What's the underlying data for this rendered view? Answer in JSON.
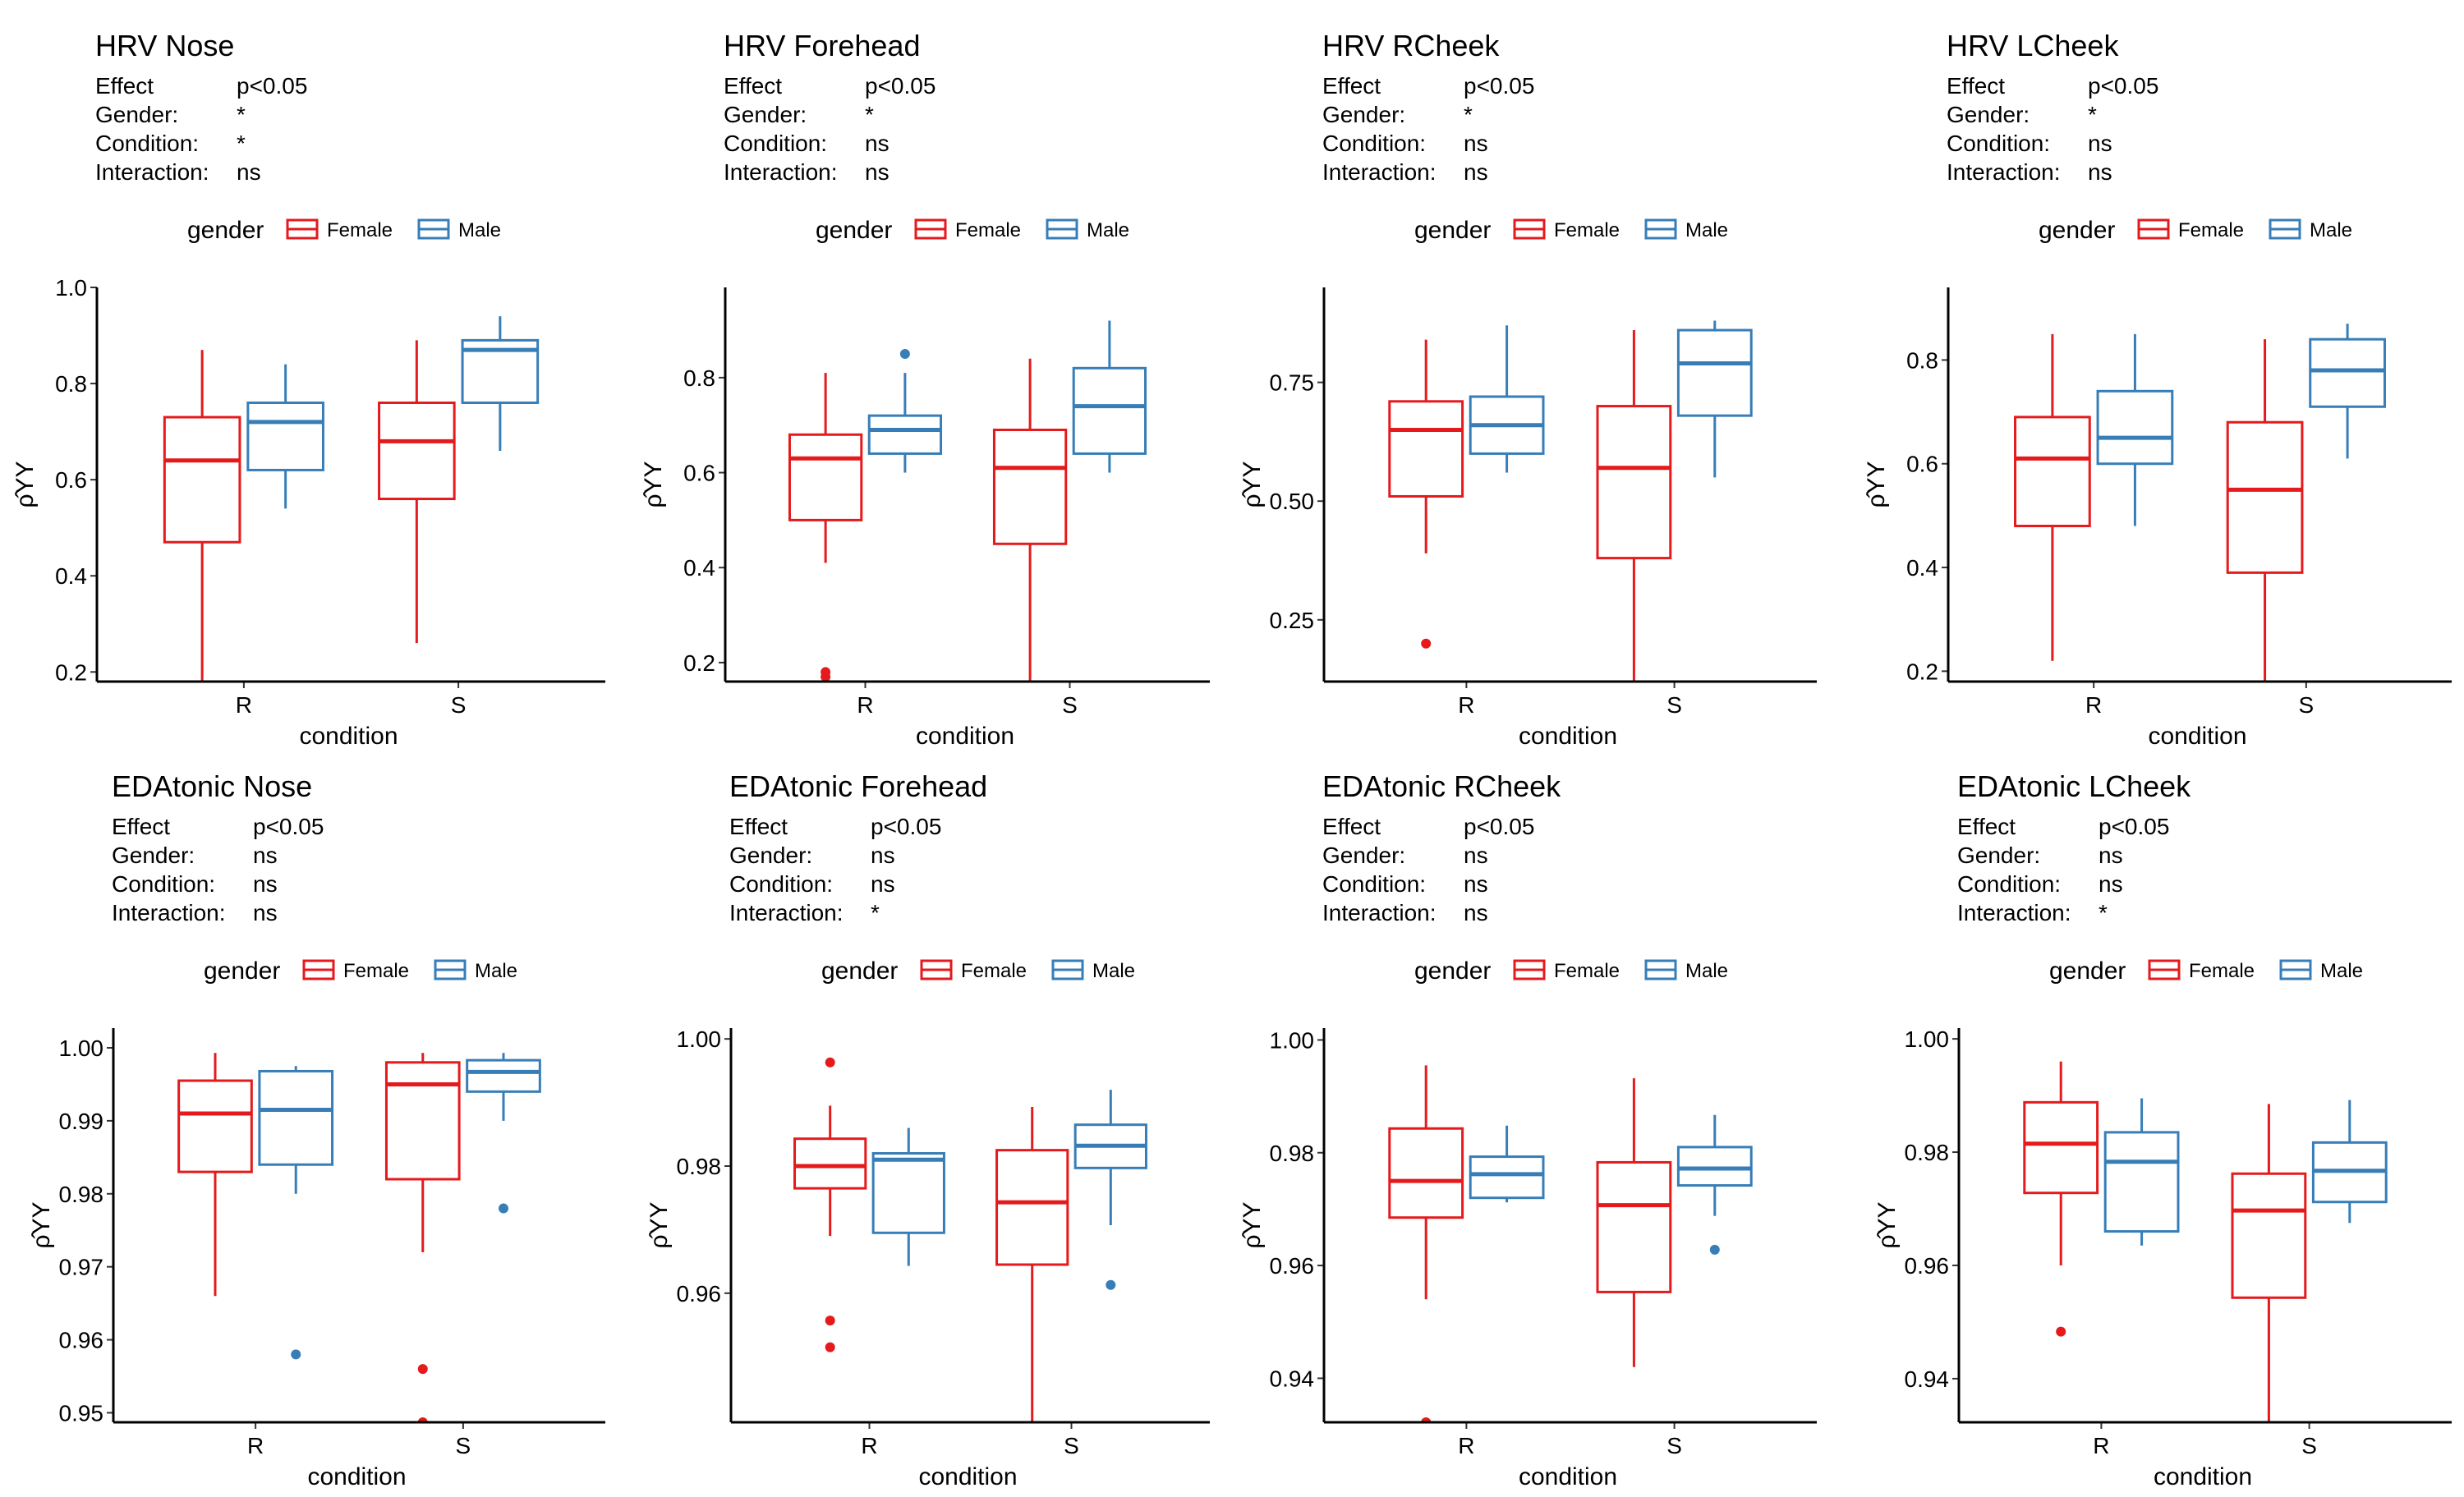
{
  "colors": {
    "female": "#e41a1c",
    "male": "#377eb8"
  },
  "chart_data": [
    {
      "type": "boxplot",
      "title": "HRV Nose",
      "stats": {
        "effect_label": "Effect",
        "effect_value": "p<0.05",
        "gender_label": "Gender:",
        "gender_value": "*",
        "condition_label": "Condition:",
        "condition_value": "*",
        "interaction_label": "Interaction:",
        "interaction_value": "ns"
      },
      "legend": {
        "title": "gender",
        "labels": [
          "Female",
          "Male"
        ],
        "placement": "top"
      },
      "xlabel": "condition",
      "ylabel": "ρ̂YY",
      "categories": [
        "R",
        "S"
      ],
      "ylim": [
        0.18,
        1.0
      ],
      "yticks": [
        0.2,
        0.4,
        0.6,
        0.8,
        1.0
      ],
      "tick_labels": [
        "0.2",
        "0.4",
        "0.6",
        "0.8",
        "1.0"
      ],
      "series": [
        {
          "name": "Female",
          "boxes": [
            {
              "min": 0.18,
              "q1": 0.47,
              "median": 0.64,
              "q3": 0.73,
              "max": 0.87,
              "outliers": []
            },
            {
              "min": 0.26,
              "q1": 0.56,
              "median": 0.68,
              "q3": 0.76,
              "max": 0.89,
              "outliers": []
            }
          ]
        },
        {
          "name": "Male",
          "boxes": [
            {
              "min": 0.54,
              "q1": 0.62,
              "median": 0.72,
              "q3": 0.76,
              "max": 0.84,
              "outliers": []
            },
            {
              "min": 0.66,
              "q1": 0.76,
              "median": 0.87,
              "q3": 0.89,
              "max": 0.94,
              "outliers": []
            }
          ]
        }
      ]
    },
    {
      "type": "boxplot",
      "title": "HRV Forehead",
      "stats": {
        "effect_label": "Effect",
        "effect_value": "p<0.05",
        "gender_label": "Gender:",
        "gender_value": "*",
        "condition_label": "Condition:",
        "condition_value": "ns",
        "interaction_label": "Interaction:",
        "interaction_value": "ns"
      },
      "legend": {
        "title": "gender",
        "labels": [
          "Female",
          "Male"
        ],
        "placement": "top"
      },
      "xlabel": "condition",
      "ylabel": "ρ̂YY",
      "categories": [
        "R",
        "S"
      ],
      "ylim": [
        0.16,
        0.99
      ],
      "yticks": [
        0.2,
        0.4,
        0.6,
        0.8
      ],
      "tick_labels": [
        "0.2",
        "0.4",
        "0.6",
        "0.8"
      ],
      "series": [
        {
          "name": "Female",
          "boxes": [
            {
              "min": 0.41,
              "q1": 0.5,
              "median": 0.63,
              "q3": 0.68,
              "max": 0.81,
              "outliers": [
                0.18,
                0.17
              ]
            },
            {
              "min": 0.16,
              "q1": 0.45,
              "median": 0.61,
              "q3": 0.69,
              "max": 0.84,
              "outliers": []
            }
          ]
        },
        {
          "name": "Male",
          "boxes": [
            {
              "min": 0.6,
              "q1": 0.64,
              "median": 0.69,
              "q3": 0.72,
              "max": 0.81,
              "outliers": [
                0.85
              ]
            },
            {
              "min": 0.6,
              "q1": 0.64,
              "median": 0.74,
              "q3": 0.82,
              "max": 0.92,
              "outliers": []
            }
          ]
        }
      ]
    },
    {
      "type": "boxplot",
      "title": "HRV RCheek",
      "stats": {
        "effect_label": "Effect",
        "effect_value": "p<0.05",
        "gender_label": "Gender:",
        "gender_value": "*",
        "condition_label": "Condition:",
        "condition_value": "ns",
        "interaction_label": "Interaction:",
        "interaction_value": "ns"
      },
      "legend": {
        "title": "gender",
        "labels": [
          "Female",
          "Male"
        ],
        "placement": "top"
      },
      "xlabel": "condition",
      "ylabel": "ρ̂YY",
      "categories": [
        "R",
        "S"
      ],
      "ylim": [
        0.12,
        0.95
      ],
      "yticks": [
        0.25,
        0.5,
        0.75
      ],
      "tick_labels": [
        "0.25",
        "0.50",
        "0.75"
      ],
      "series": [
        {
          "name": "Female",
          "boxes": [
            {
              "min": 0.39,
              "q1": 0.51,
              "median": 0.65,
              "q3": 0.71,
              "max": 0.84,
              "outliers": [
                0.2
              ]
            },
            {
              "min": 0.12,
              "q1": 0.38,
              "median": 0.57,
              "q3": 0.7,
              "max": 0.86,
              "outliers": []
            }
          ]
        },
        {
          "name": "Male",
          "boxes": [
            {
              "min": 0.56,
              "q1": 0.6,
              "median": 0.66,
              "q3": 0.72,
              "max": 0.87,
              "outliers": []
            },
            {
              "min": 0.55,
              "q1": 0.68,
              "median": 0.79,
              "q3": 0.86,
              "max": 0.88,
              "outliers": []
            }
          ]
        }
      ]
    },
    {
      "type": "boxplot",
      "title": "HRV LCheek",
      "stats": {
        "effect_label": "Effect",
        "effect_value": "p<0.05",
        "gender_label": "Gender:",
        "gender_value": "*",
        "condition_label": "Condition:",
        "condition_value": "ns",
        "interaction_label": "Interaction:",
        "interaction_value": "ns"
      },
      "legend": {
        "title": "gender",
        "labels": [
          "Female",
          "Male"
        ],
        "placement": "top"
      },
      "xlabel": "condition",
      "ylabel": "ρ̂YY",
      "categories": [
        "R",
        "S"
      ],
      "ylim": [
        0.18,
        0.94
      ],
      "yticks": [
        0.2,
        0.4,
        0.6,
        0.8
      ],
      "tick_labels": [
        "0.2",
        "0.4",
        "0.6",
        "0.8"
      ],
      "series": [
        {
          "name": "Female",
          "boxes": [
            {
              "min": 0.22,
              "q1": 0.48,
              "median": 0.61,
              "q3": 0.69,
              "max": 0.85,
              "outliers": []
            },
            {
              "min": 0.18,
              "q1": 0.39,
              "median": 0.55,
              "q3": 0.68,
              "max": 0.84,
              "outliers": []
            }
          ]
        },
        {
          "name": "Male",
          "boxes": [
            {
              "min": 0.48,
              "q1": 0.6,
              "median": 0.65,
              "q3": 0.74,
              "max": 0.85,
              "outliers": []
            },
            {
              "min": 0.61,
              "q1": 0.71,
              "median": 0.78,
              "q3": 0.84,
              "max": 0.87,
              "outliers": []
            }
          ]
        }
      ]
    },
    {
      "type": "boxplot",
      "title": "EDAtonic Nose",
      "stats": {
        "effect_label": "Effect",
        "effect_value": "p<0.05",
        "gender_label": "Gender:",
        "gender_value": "ns",
        "condition_label": "Condition:",
        "condition_value": "ns",
        "interaction_label": "Interaction:",
        "interaction_value": "ns"
      },
      "legend": {
        "title": "gender",
        "labels": [
          "Female",
          "Male"
        ],
        "placement": "top"
      },
      "xlabel": "condition",
      "ylabel": "ρ̂YY",
      "categories": [
        "R",
        "S"
      ],
      "ylim": [
        0.9487,
        1.0027
      ],
      "yticks": [
        0.95,
        0.96,
        0.97,
        0.98,
        0.99,
        1.0
      ],
      "tick_labels": [
        "0.95",
        "0.96",
        "0.97",
        "0.98",
        "0.99",
        "1.00"
      ],
      "series": [
        {
          "name": "Female",
          "boxes": [
            {
              "min": 0.966,
              "q1": 0.983,
              "median": 0.991,
              "q3": 0.9955,
              "max": 0.9993,
              "outliers": []
            },
            {
              "min": 0.972,
              "q1": 0.982,
              "median": 0.995,
              "q3": 0.998,
              "max": 0.9993,
              "outliers": [
                0.956,
                0.9487
              ]
            }
          ]
        },
        {
          "name": "Male",
          "boxes": [
            {
              "min": 0.98,
              "q1": 0.984,
              "median": 0.9915,
              "q3": 0.9968,
              "max": 0.9975,
              "outliers": [
                0.958
              ]
            },
            {
              "min": 0.99,
              "q1": 0.994,
              "median": 0.9967,
              "q3": 0.9983,
              "max": 0.9993,
              "outliers": [
                0.978
              ]
            }
          ]
        }
      ]
    },
    {
      "type": "boxplot",
      "title": "EDAtonic Forehead",
      "stats": {
        "effect_label": "Effect",
        "effect_value": "p<0.05",
        "gender_label": "Gender:",
        "gender_value": "ns",
        "condition_label": "Condition:",
        "condition_value": "ns",
        "interaction_label": "Interaction:",
        "interaction_value": "*"
      },
      "legend": {
        "title": "gender",
        "labels": [
          "Female",
          "Male"
        ],
        "placement": "top"
      },
      "xlabel": "condition",
      "ylabel": "ρ̂YY",
      "categories": [
        "R",
        "S"
      ],
      "ylim": [
        0.9397,
        1.0017
      ],
      "yticks": [
        0.96,
        0.98,
        1.0
      ],
      "tick_labels": [
        "0.96",
        "0.98",
        "1.00"
      ],
      "series": [
        {
          "name": "Female",
          "boxes": [
            {
              "min": 0.969,
              "q1": 0.9765,
              "median": 0.98,
              "q3": 0.9843,
              "max": 0.9895,
              "outliers": [
                0.9963,
                0.9557,
                0.9515
              ]
            },
            {
              "min": 0.9397,
              "q1": 0.9645,
              "median": 0.9743,
              "q3": 0.9825,
              "max": 0.9893,
              "outliers": []
            }
          ]
        },
        {
          "name": "Male",
          "boxes": [
            {
              "min": 0.9643,
              "q1": 0.9695,
              "median": 0.981,
              "q3": 0.982,
              "max": 0.986,
              "outliers": []
            },
            {
              "min": 0.9707,
              "q1": 0.9797,
              "median": 0.9832,
              "q3": 0.9865,
              "max": 0.992,
              "outliers": [
                0.9613
              ]
            }
          ]
        }
      ]
    },
    {
      "type": "boxplot",
      "title": "EDAtonic RCheek",
      "stats": {
        "effect_label": "Effect",
        "effect_value": "p<0.05",
        "gender_label": "Gender:",
        "gender_value": "ns",
        "condition_label": "Condition:",
        "condition_value": "ns",
        "interaction_label": "Interaction:",
        "interaction_value": "ns"
      },
      "legend": {
        "title": "gender",
        "labels": [
          "Female",
          "Male"
        ],
        "placement": "top"
      },
      "xlabel": "condition",
      "ylabel": "ρ̂YY",
      "categories": [
        "R",
        "S"
      ],
      "ylim": [
        0.9322,
        1.0021
      ],
      "yticks": [
        0.94,
        0.96,
        0.98,
        1.0
      ],
      "tick_labels": [
        "0.94",
        "0.96",
        "0.98",
        "1.00"
      ],
      "series": [
        {
          "name": "Female",
          "boxes": [
            {
              "min": 0.954,
              "q1": 0.9685,
              "median": 0.975,
              "q3": 0.9843,
              "max": 0.9955,
              "outliers": [
                0.9322
              ]
            },
            {
              "min": 0.942,
              "q1": 0.9553,
              "median": 0.9707,
              "q3": 0.9783,
              "max": 0.9932,
              "outliers": []
            }
          ]
        },
        {
          "name": "Male",
          "boxes": [
            {
              "min": 0.9712,
              "q1": 0.972,
              "median": 0.9762,
              "q3": 0.9793,
              "max": 0.9848,
              "outliers": []
            },
            {
              "min": 0.9688,
              "q1": 0.9742,
              "median": 0.9772,
              "q3": 0.981,
              "max": 0.9867,
              "outliers": [
                0.9628
              ]
            }
          ]
        }
      ]
    },
    {
      "type": "boxplot",
      "title": "EDAtonic LCheek",
      "stats": {
        "effect_label": "Effect",
        "effect_value": "p<0.05",
        "gender_label": "Gender:",
        "gender_value": "ns",
        "condition_label": "Condition:",
        "condition_value": "ns",
        "interaction_label": "Interaction:",
        "interaction_value": "*"
      },
      "legend": {
        "title": "gender",
        "labels": [
          "Female",
          "Male"
        ],
        "placement": "top"
      },
      "xlabel": "condition",
      "ylabel": "ρ̂YY",
      "categories": [
        "R",
        "S"
      ],
      "ylim": [
        0.9323,
        1.0019
      ],
      "yticks": [
        0.94,
        0.96,
        0.98,
        1.0
      ],
      "tick_labels": [
        "0.94",
        "0.96",
        "0.98",
        "1.00"
      ],
      "series": [
        {
          "name": "Female",
          "boxes": [
            {
              "min": 0.96,
              "q1": 0.9728,
              "median": 0.9815,
              "q3": 0.9888,
              "max": 0.996,
              "outliers": [
                0.9483
              ]
            },
            {
              "min": 0.9323,
              "q1": 0.9543,
              "median": 0.9697,
              "q3": 0.9762,
              "max": 0.9885,
              "outliers": []
            }
          ]
        },
        {
          "name": "Male",
          "boxes": [
            {
              "min": 0.9635,
              "q1": 0.966,
              "median": 0.9783,
              "q3": 0.9835,
              "max": 0.9895,
              "outliers": []
            },
            {
              "min": 0.9675,
              "q1": 0.9712,
              "median": 0.9767,
              "q3": 0.9817,
              "max": 0.9892,
              "outliers": []
            }
          ]
        }
      ]
    }
  ]
}
